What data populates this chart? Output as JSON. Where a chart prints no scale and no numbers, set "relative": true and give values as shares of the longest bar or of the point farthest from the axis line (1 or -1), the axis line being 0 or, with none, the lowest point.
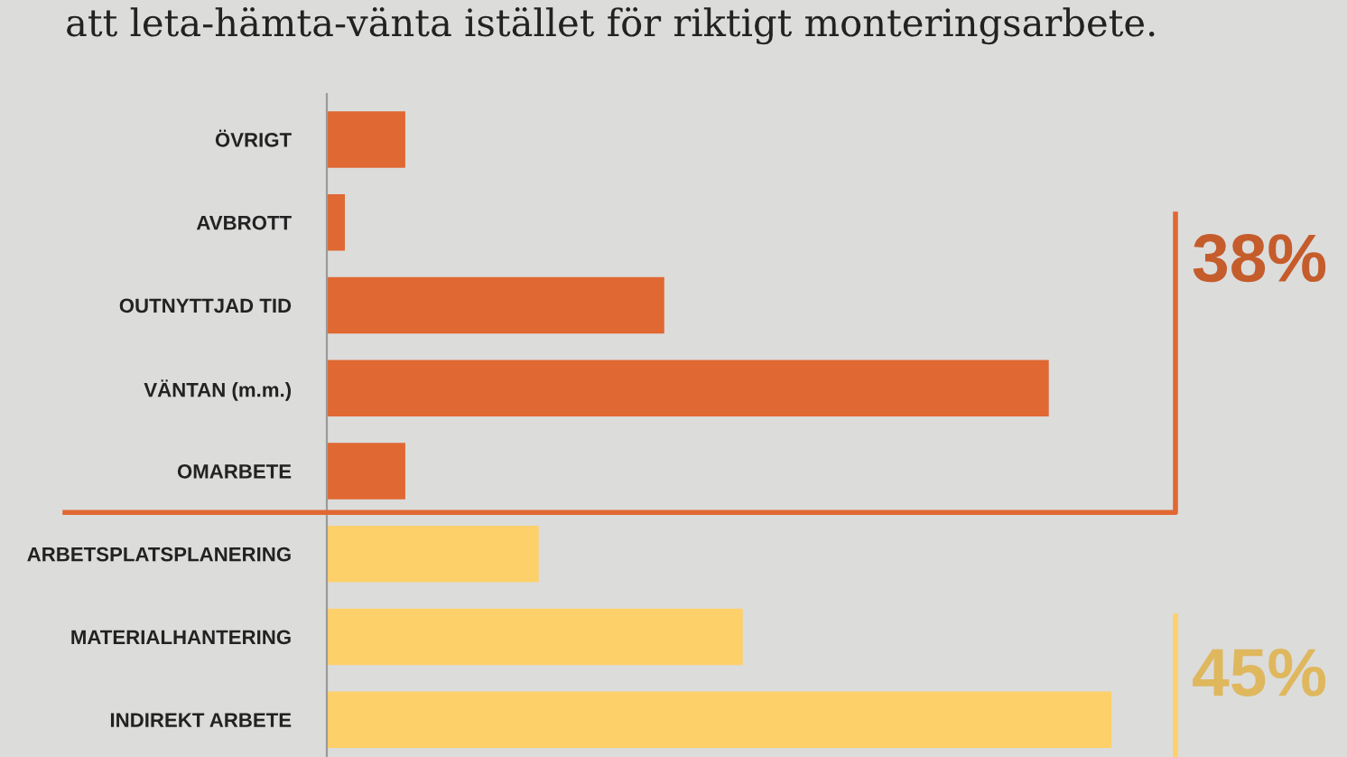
{
  "chart_data": {
    "type": "bar",
    "orientation": "horizontal",
    "relative": true,
    "title": "att leta-hämta-vänta istället för riktigt monteringsarbete.",
    "categories": [
      "ÖVRIGT",
      "AVBROTT",
      "OUTNYTTJAD TID",
      "VÄNTAN (m.m.)",
      "OMARBETE",
      "ARBETSPLATSPLANERING",
      "MATERIALHANTERING",
      "INDIREKT ARBETE"
    ],
    "values": [
      0.1,
      0.023,
      0.43,
      0.92,
      0.1,
      0.27,
      0.53,
      1.0
    ],
    "colors": [
      "#e06832",
      "#e06832",
      "#e06832",
      "#e06832",
      "#e06832",
      "#fdd06a",
      "#fdd06a",
      "#fdd06a"
    ],
    "annotations": [
      "38%",
      "45%"
    ],
    "grid": false,
    "legend": false
  }
}
